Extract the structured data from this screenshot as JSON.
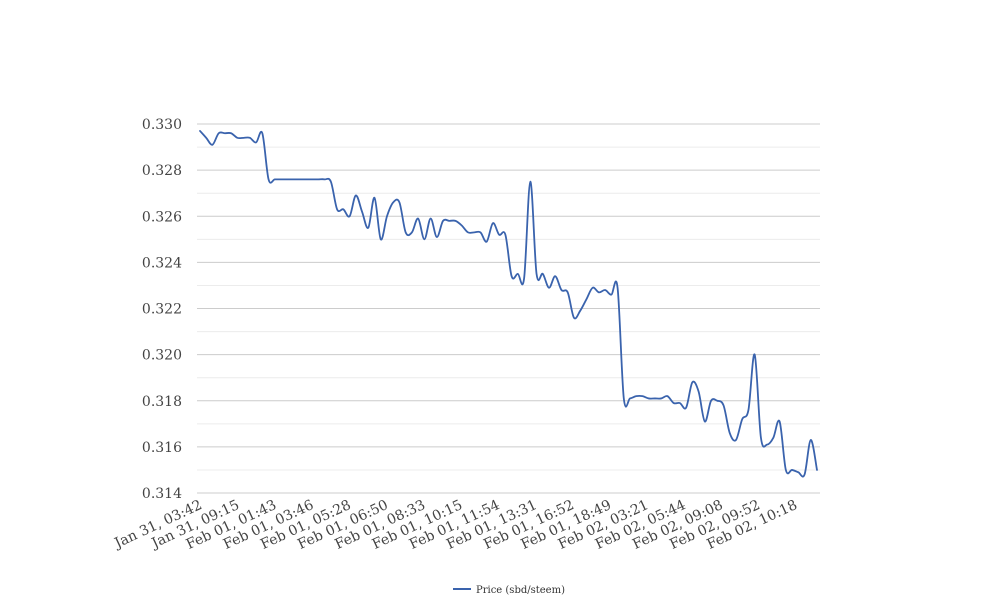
{
  "chart_data": {
    "type": "line",
    "title": "",
    "xlabel": "",
    "ylabel": "",
    "ylim": [
      0.314,
      0.33
    ],
    "ytick_values": [
      0.314,
      0.316,
      0.318,
      0.32,
      0.322,
      0.324,
      0.326,
      0.328,
      0.33
    ],
    "ytick_labels": [
      "0.314",
      "0.316",
      "0.318",
      "0.320",
      "0.322",
      "0.324",
      "0.326",
      "0.328",
      "0.330"
    ],
    "xtick_labels": [
      "Jan 31, 03:42",
      "Jan 31, 09:15",
      "Feb 01, 01:43",
      "Feb 01, 03:46",
      "Feb 01, 05:28",
      "Feb 01, 06:50",
      "Feb 01, 08:33",
      "Feb 01, 10:15",
      "Feb 01, 11:54",
      "Feb 01, 13:31",
      "Feb 01, 16:52",
      "Feb 01, 18:49",
      "Feb 02, 03:21",
      "Feb 02, 05:44",
      "Feb 02, 09:08",
      "Feb 02, 09:52",
      "Feb 02, 10:18"
    ],
    "grid": true,
    "legend": "bottom-center",
    "series": [
      {
        "name": "Price (sbd/steem)",
        "color": "#3a63ad",
        "values": [
          0.3297,
          0.3294,
          0.3291,
          0.3296,
          0.3296,
          0.3296,
          0.3294,
          0.3294,
          0.3294,
          0.3292,
          0.3296,
          0.3276,
          0.3276,
          0.3276,
          0.3276,
          0.3276,
          0.3276,
          0.3276,
          0.3276,
          0.3276,
          0.3276,
          0.3275,
          0.3263,
          0.3263,
          0.326,
          0.3269,
          0.3262,
          0.3255,
          0.3268,
          0.325,
          0.326,
          0.3266,
          0.3266,
          0.3253,
          0.3253,
          0.3259,
          0.325,
          0.3259,
          0.3251,
          0.3258,
          0.3258,
          0.3258,
          0.3256,
          0.3253,
          0.3253,
          0.3253,
          0.3249,
          0.3257,
          0.3252,
          0.3252,
          0.3234,
          0.3235,
          0.3233,
          0.3275,
          0.3235,
          0.3235,
          0.3229,
          0.3234,
          0.3228,
          0.3227,
          0.3216,
          0.3219,
          0.3224,
          0.3229,
          0.3227,
          0.3228,
          0.3226,
          0.3229,
          0.3181,
          0.3181,
          0.3182,
          0.3182,
          0.3181,
          0.3181,
          0.3181,
          0.3182,
          0.3179,
          0.3179,
          0.3177,
          0.3188,
          0.3184,
          0.3171,
          0.318,
          0.318,
          0.3178,
          0.3166,
          0.3163,
          0.3172,
          0.3176,
          0.32,
          0.3164,
          0.3161,
          0.3164,
          0.3171,
          0.315,
          0.315,
          0.3149,
          0.3148,
          0.3163,
          0.315
        ]
      }
    ]
  }
}
